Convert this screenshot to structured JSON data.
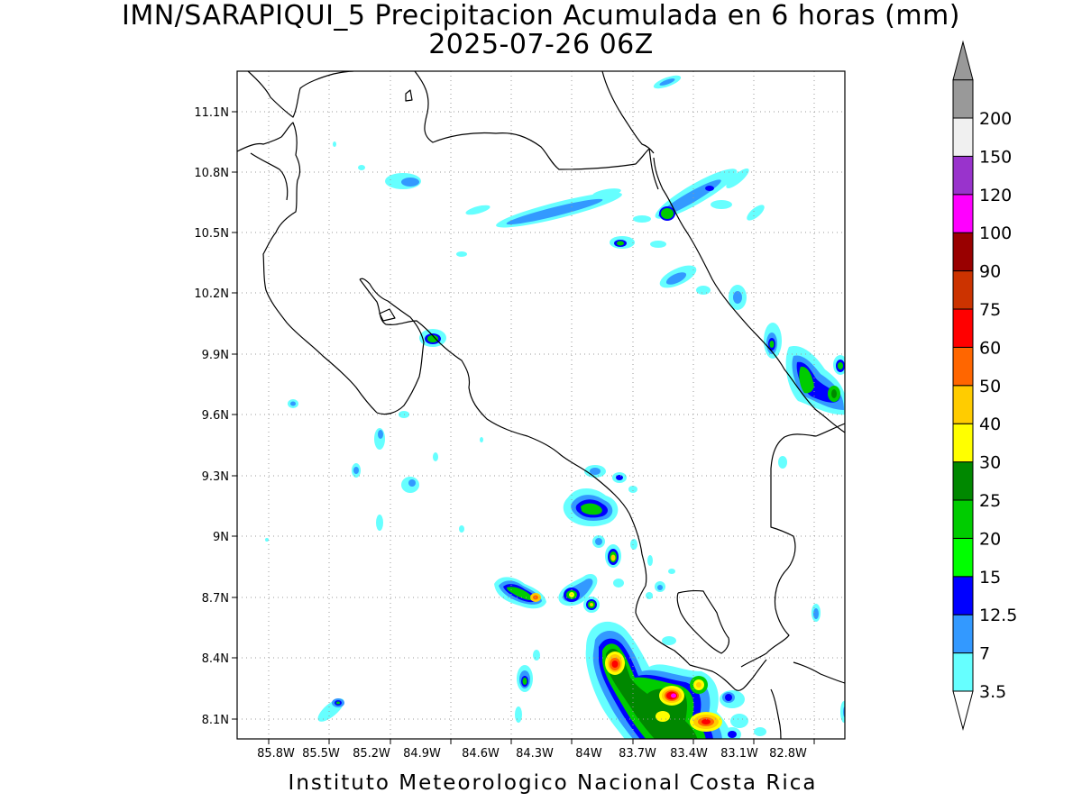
{
  "title": {
    "line1": "IMN/SARAPIQUI_5 Precipitacion Acumulada en 6 horas (mm)",
    "line2": "2025-07-26 06Z"
  },
  "footer": "Instituto Meteorologico Nacional Costa Rica",
  "map": {
    "lat_labels": [
      "11.1N",
      "10.8N",
      "10.5N",
      "10.2N",
      "9.9N",
      "9.6N",
      "9.3N",
      "9N",
      "8.7N",
      "8.4N",
      "8.1N"
    ],
    "lon_labels": [
      "85.8W",
      "85.5W",
      "85.2W",
      "84.9W",
      "84.6W",
      "84.3W",
      "84W",
      "83.7W",
      "83.4W",
      "83.1W",
      "82.8W"
    ],
    "grid": "dotted",
    "coastline_color": "#000000"
  },
  "colorbar": {
    "units": "mm",
    "levels": [
      {
        "label": "3.5",
        "color": "#66ffff"
      },
      {
        "label": "7",
        "color": "#3399ff"
      },
      {
        "label": "12.5",
        "color": "#0000ff"
      },
      {
        "label": "15",
        "color": "#00ff00"
      },
      {
        "label": "20",
        "color": "#00cc00"
      },
      {
        "label": "25",
        "color": "#008800"
      },
      {
        "label": "30",
        "color": "#ffff00"
      },
      {
        "label": "40",
        "color": "#ffcc00"
      },
      {
        "label": "50",
        "color": "#ff6600"
      },
      {
        "label": "60",
        "color": "#ff0000"
      },
      {
        "label": "75",
        "color": "#cc3300"
      },
      {
        "label": "90",
        "color": "#990000"
      },
      {
        "label": "100",
        "color": "#ff00ff"
      },
      {
        "label": "120",
        "color": "#9933cc"
      },
      {
        "label": "150",
        "color": "#f0f0f0"
      },
      {
        "label": "200",
        "color": "#999999"
      }
    ]
  }
}
